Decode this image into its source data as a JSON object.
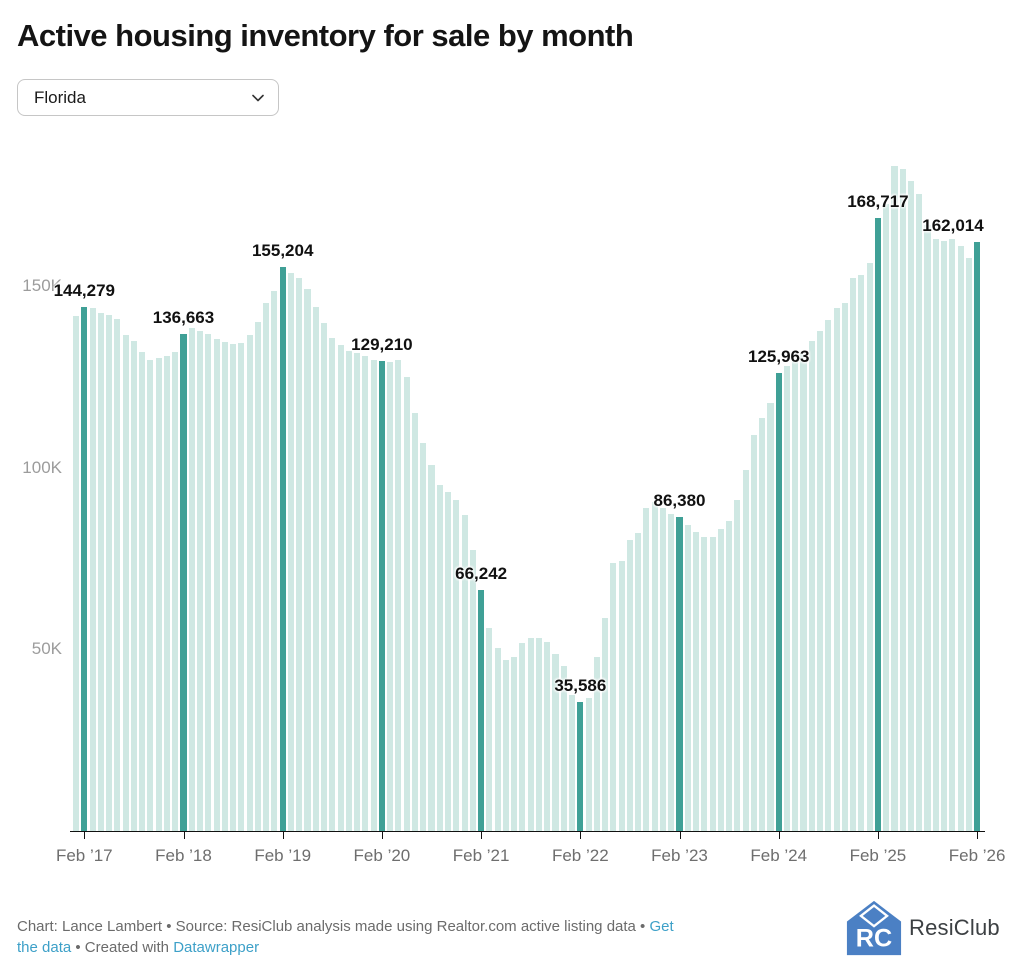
{
  "title": "Active housing inventory for sale by month",
  "controls": {
    "region_dropdown": {
      "value": "Florida"
    }
  },
  "chart_data": {
    "type": "bar",
    "title": "Active housing inventory for sale by month",
    "region": "Florida",
    "start_month": "2017-01",
    "end_month": "2026-02",
    "frequency": "monthly",
    "values": [
      141700,
      144279,
      144000,
      142600,
      142000,
      140800,
      136500,
      134900,
      131900,
      129600,
      130100,
      130700,
      131900,
      136663,
      138300,
      137600,
      136800,
      135500,
      134600,
      134000,
      134400,
      136500,
      140000,
      145400,
      148500,
      155204,
      153500,
      152100,
      149100,
      144300,
      139700,
      135600,
      133700,
      132200,
      131400,
      130700,
      129600,
      129210,
      129000,
      129700,
      124800,
      115000,
      106700,
      100700,
      95200,
      93300,
      91000,
      86900,
      77200,
      66242,
      55800,
      50400,
      47000,
      47800,
      51600,
      53200,
      53100,
      52000,
      48600,
      45500,
      37500,
      35586,
      36600,
      47800,
      58500,
      73800,
      74200,
      80100,
      82100,
      88800,
      90400,
      88800,
      87300,
      86380,
      84200,
      82400,
      81000,
      81000,
      83200,
      85300,
      91000,
      99300,
      109000,
      113600,
      117800,
      125963,
      127900,
      130200,
      131600,
      134800,
      137500,
      140600,
      144000,
      145400,
      152300,
      152900,
      156400,
      168717,
      172500,
      183000,
      182300,
      179000,
      175200,
      166800,
      163000,
      162400,
      163000,
      161000,
      157800,
      162014
    ],
    "highlighted_month": "February",
    "value_labels": {
      "1": "144,279",
      "13": "136,663",
      "25": "155,204",
      "37": "129,210",
      "49": "66,242",
      "61": "35,586",
      "73": "86,380",
      "85": "125,963",
      "97": "168,717",
      "109": "162,014"
    },
    "x_tick_labels": [
      "Feb ’17",
      "Feb ’18",
      "Feb ’19",
      "Feb ’20",
      "Feb ’21",
      "Feb ’22",
      "Feb ’23",
      "Feb ’24",
      "Feb ’25",
      "Feb ’26"
    ],
    "y_ticks": [
      {
        "label": "50K",
        "value": 50000
      },
      {
        "label": "100K",
        "value": 100000
      },
      {
        "label": "150K",
        "value": 150000
      }
    ],
    "ylim": [
      0,
      188000
    ],
    "grid": "off",
    "bar_color": "#cfe8e3",
    "highlight_color": "#3fa096"
  },
  "footer": {
    "line1_text": "Chart: Lance Lambert • Source: ResiClub analysis made using Realtor.com active listing data • ",
    "link_get_the_data_part1": "Get",
    "link_get_the_data_part2": "the data",
    "line2_mid": " • Created with ",
    "link_datawrapper": "Datawrapper",
    "link_color": "#3da0c8"
  },
  "brand": {
    "name": "ResiClub",
    "logo_color": "#4b80c4",
    "logo_letters": "RC"
  }
}
